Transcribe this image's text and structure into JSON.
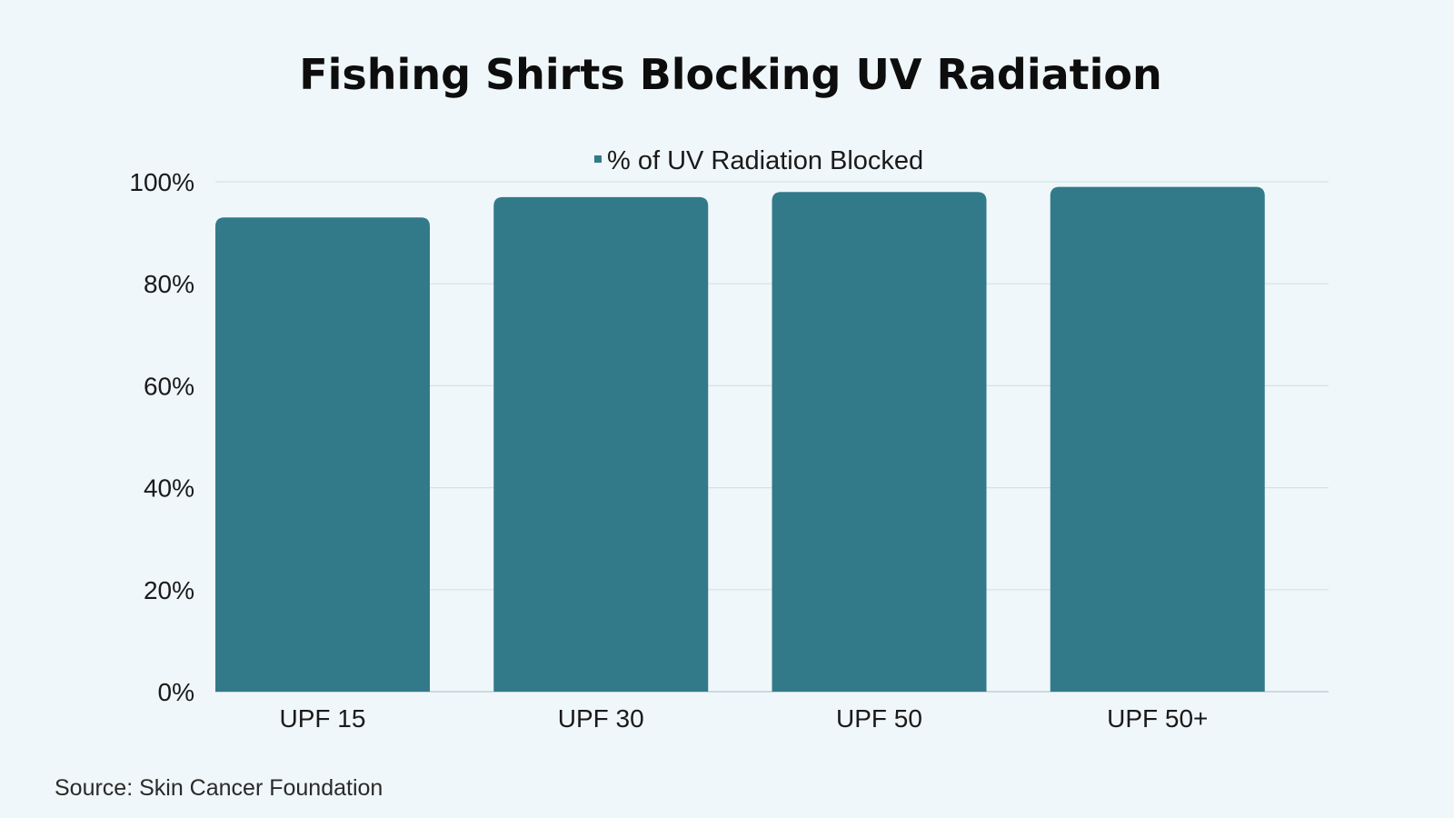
{
  "chart_data": {
    "type": "bar",
    "title": "Fishing Shirts Blocking UV Radiation",
    "legend": {
      "position": "top-center",
      "entries": [
        "% of UV Radiation Blocked"
      ]
    },
    "categories": [
      "UPF 15",
      "UPF 30",
      "UPF 50",
      "UPF 50+"
    ],
    "series": [
      {
        "name": "% of UV Radiation Blocked",
        "values": [
          93,
          97,
          98,
          99
        ],
        "color": "#327a8a"
      }
    ],
    "ylim": [
      0,
      100
    ],
    "yticks": [
      0,
      20,
      40,
      60,
      80,
      100
    ],
    "ytick_labels": [
      "0%",
      "20%",
      "40%",
      "60%",
      "80%",
      "100%"
    ],
    "grid": true,
    "source": "Source: Skin Cancer Foundation"
  },
  "colors": {
    "background": "#eff7fa",
    "bar": "#327a8a",
    "gridline": "#d4e2e6"
  }
}
